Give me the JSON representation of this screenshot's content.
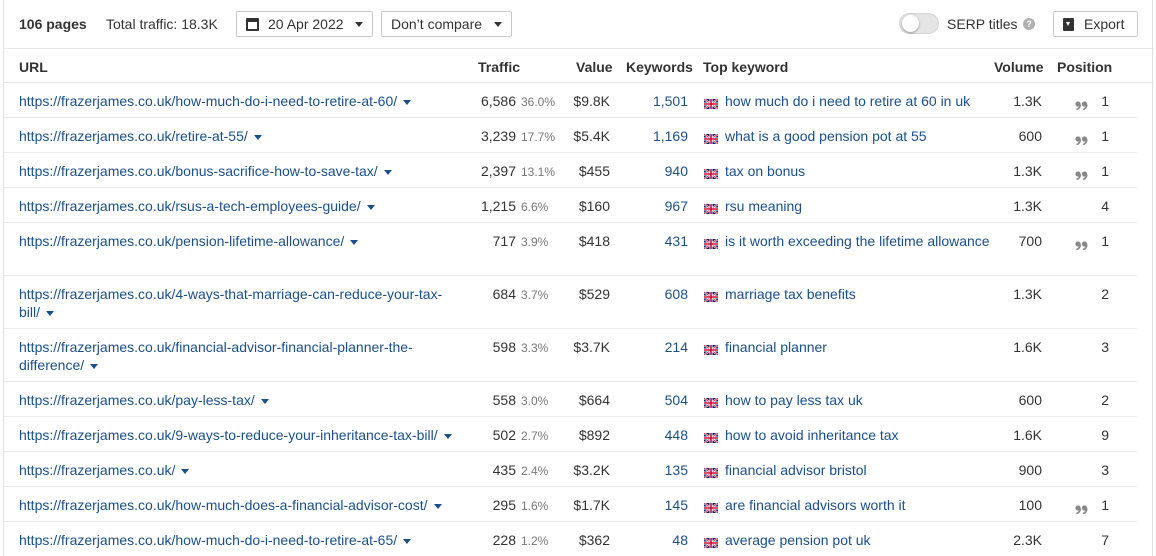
{
  "toolbar": {
    "pages_count": "106 pages",
    "total_traffic": "Total traffic: 18.3K",
    "date": "20 Apr 2022",
    "compare": "Don’t compare",
    "serp_titles_label": "SERP titles",
    "help": "?",
    "export_label": "Export"
  },
  "table": {
    "headers": {
      "url": "URL",
      "traffic": "Traffic",
      "value": "Value",
      "keywords": "Keywords",
      "top_keyword": "Top keyword",
      "volume": "Volume",
      "position": "Position"
    },
    "rows": [
      {
        "url": "https://frazerjames.co.uk/how-much-do-i-need-to-retire-at-60/",
        "traffic": "6,586",
        "share": "36.0%",
        "value": "$9.8K",
        "keywords": "1,501",
        "top_keyword": "how much do i need to retire at 60 in uk",
        "volume": "1.3K",
        "serp_feature": true,
        "position": "1"
      },
      {
        "url": "https://frazerjames.co.uk/retire-at-55/",
        "traffic": "3,239",
        "share": "17.7%",
        "value": "$5.4K",
        "keywords": "1,169",
        "top_keyword": "what is a good pension pot at 55",
        "volume": "600",
        "serp_feature": true,
        "position": "1"
      },
      {
        "url": "https://frazerjames.co.uk/bonus-sacrifice-how-to-save-tax/",
        "traffic": "2,397",
        "share": "13.1%",
        "value": "$455",
        "keywords": "940",
        "top_keyword": "tax on bonus",
        "volume": "1.3K",
        "serp_feature": true,
        "position": "1"
      },
      {
        "url": "https://frazerjames.co.uk/rsus-a-tech-employees-guide/",
        "traffic": "1,215",
        "share": "6.6%",
        "value": "$160",
        "keywords": "967",
        "top_keyword": "rsu meaning",
        "volume": "1.3K",
        "serp_feature": false,
        "position": "4"
      },
      {
        "url": "https://frazerjames.co.uk/pension-lifetime-allowance/",
        "traffic": "717",
        "share": "3.9%",
        "value": "$418",
        "keywords": "431",
        "top_keyword": "is it worth exceeding the lifetime allowance",
        "volume": "700",
        "serp_feature": true,
        "position": "1"
      },
      {
        "url": "https://frazerjames.co.uk/4-ways-that-marriage-can-reduce-your-tax-bill/",
        "traffic": "684",
        "share": "3.7%",
        "value": "$529",
        "keywords": "608",
        "top_keyword": "marriage tax benefits",
        "volume": "1.3K",
        "serp_feature": false,
        "position": "2"
      },
      {
        "url": "https://frazerjames.co.uk/financial-advisor-financial-planner-the-difference/",
        "traffic": "598",
        "share": "3.3%",
        "value": "$3.7K",
        "keywords": "214",
        "top_keyword": "financial planner",
        "volume": "1.6K",
        "serp_feature": false,
        "position": "3"
      },
      {
        "url": "https://frazerjames.co.uk/pay-less-tax/",
        "traffic": "558",
        "share": "3.0%",
        "value": "$664",
        "keywords": "504",
        "top_keyword": "how to pay less tax uk",
        "volume": "600",
        "serp_feature": false,
        "position": "2"
      },
      {
        "url": "https://frazerjames.co.uk/9-ways-to-reduce-your-inheritance-tax-bill/",
        "traffic": "502",
        "share": "2.7%",
        "value": "$892",
        "keywords": "448",
        "top_keyword": "how to avoid inheritance tax",
        "volume": "1.6K",
        "serp_feature": false,
        "position": "9"
      },
      {
        "url": "https://frazerjames.co.uk/",
        "traffic": "435",
        "share": "2.4%",
        "value": "$3.2K",
        "keywords": "135",
        "top_keyword": "financial advisor bristol",
        "volume": "900",
        "serp_feature": false,
        "position": "3"
      },
      {
        "url": "https://frazerjames.co.uk/how-much-does-a-financial-advisor-cost/",
        "traffic": "295",
        "share": "1.6%",
        "value": "$1.7K",
        "keywords": "145",
        "top_keyword": "are financial advisors worth it",
        "volume": "100",
        "serp_feature": true,
        "position": "1"
      },
      {
        "url": "https://frazerjames.co.uk/how-much-do-i-need-to-retire-at-65/",
        "traffic": "228",
        "share": "1.2%",
        "value": "$362",
        "keywords": "48",
        "top_keyword": "average pension pot uk",
        "volume": "2.3K",
        "serp_feature": false,
        "position": "7"
      }
    ]
  },
  "icons": {
    "date_button": "calendar-icon",
    "export_button": "download-icon",
    "top_keyword_country": "uk-flag-icon",
    "serp_feature": "quote-icon"
  },
  "colors": {
    "link": "#1a4f8c",
    "text": "#333333",
    "muted": "#777777",
    "border": "#e6e6e6"
  }
}
